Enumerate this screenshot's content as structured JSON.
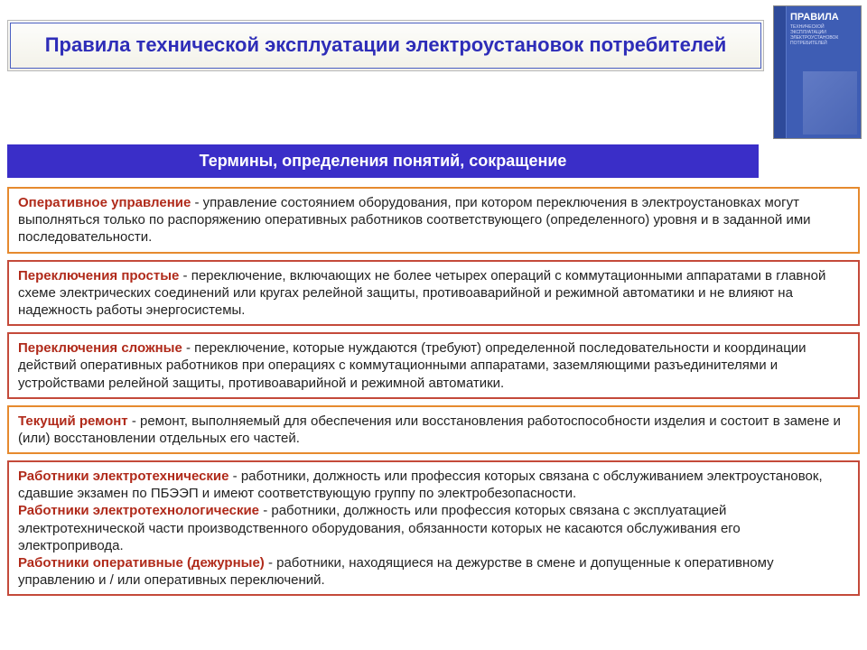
{
  "header": {
    "title": "Правила технической эксплуатации электроустановок потребителей"
  },
  "book": {
    "title": "ПРАВИЛА",
    "subtitle": "ТЕХНИЧЕСКОЙ ЭКСПЛУАТАЦИИ ЭЛЕКТРОУСТАНОВОК ПОТРЕБИТЕЛЕЙ"
  },
  "subheader": "Термины, определения понятий, сокращение",
  "colors": {
    "header_text": "#2e2db8",
    "subheader_bg": "#3a2ec8",
    "subheader_text": "#ffffff",
    "box1_border": "#e68a2e",
    "box2_border": "#c44a3a",
    "box3_border": "#c44a3a",
    "box4_border": "#e68a2e",
    "box5_border": "#c44a3a",
    "term1": "#b02a1a",
    "term2": "#b02a1a",
    "term3": "#b02a1a",
    "term4": "#b02a1a",
    "term5a": "#b02a1a",
    "term5b": "#b02a1a",
    "term5c": "#b02a1a"
  },
  "definitions": [
    {
      "term": "Оперативное управление",
      "text": " - управление состоянием оборудования, при котором переключения в электроустановках могут выполняться только по распоряжению оперативных работников соответствующего (определенного) уровня и в заданной ими последовательности."
    },
    {
      "term": "Переключения простые",
      "text": " - переключение, включающих не более четырех операций с коммутационными аппаратами в главной схеме электрических соединений или кругах релейной защиты, противоаварийной и режимной автоматики и не влияют на надежность работы энергосистемы."
    },
    {
      "term": "Переключения сложные",
      "text": " - переключение, которые нуждаются (требуют) определенной последовательности и координации действий оперативных работников при операциях с коммутационными аппаратами, заземляющими разъединителями и устройствами релейной защиты, противоаварийной и режимной автоматики."
    },
    {
      "term": "Текущий ремонт",
      "text": " - ремонт, выполняемый для обеспечения или восстановления работоспособности изделия и состоит в замене и (или) восстановлении отдельных его частей."
    }
  ],
  "definition5": {
    "parts": [
      {
        "term": "Работники электротехнические",
        "text": " - работники, должность или профессия которых связана с обслуживанием электроустановок, сдавшие экзамен по ПБЭЭП и имеют соответствующую группу по электробезопасности."
      },
      {
        "term": "Работники электротехнологические",
        "text": " - работники, должность или профессия которых связана с эксплуатацией электротехнической части производственного оборудования, обязанности которых не касаются обслуживания его электропривода."
      },
      {
        "term": "Работники оперативные (дежурные)",
        "text": " - работники, находящиеся на дежурстве в смене и допущенные к оперативному управлению и / или оперативных переключений."
      }
    ]
  }
}
